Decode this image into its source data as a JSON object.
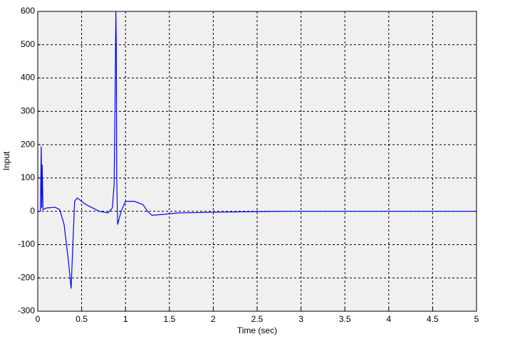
{
  "chart_data": {
    "type": "line",
    "x_label": "Time (sec)",
    "y_label": "Input",
    "x": [
      0,
      0.03,
      0.04,
      0.045,
      0.05,
      0.06,
      0.1,
      0.2,
      0.25,
      0.3,
      0.35,
      0.38,
      0.4,
      0.42,
      0.45,
      0.55,
      0.7,
      0.8,
      0.85,
      0.87,
      0.88,
      0.89,
      0.895,
      0.9,
      0.91,
      0.95,
      1.0,
      1.1,
      1.2,
      1.25,
      1.3,
      1.4,
      1.6,
      2.0,
      2.5,
      2.8,
      5
    ],
    "series": [
      {
        "name": "Input",
        "color": "#0000ff",
        "values": [
          0,
          0,
          195,
          10,
          140,
          5,
          10,
          12,
          5,
          -40,
          -150,
          -232,
          -100,
          30,
          40,
          20,
          0,
          -5,
          10,
          80,
          300,
          600,
          500,
          100,
          -40,
          0,
          30,
          30,
          20,
          0,
          -12,
          -10,
          -5,
          -3,
          -1,
          0,
          0
        ]
      }
    ],
    "xlim": [
      0,
      5
    ],
    "xticks": [
      0,
      0.5,
      1,
      1.5,
      2,
      2.5,
      3,
      3.5,
      4,
      4.5,
      5
    ],
    "ylim": [
      -300,
      600
    ],
    "yticks": [
      -300,
      -200,
      -100,
      0,
      100,
      200,
      300,
      400,
      500,
      600
    ],
    "grid": true
  }
}
